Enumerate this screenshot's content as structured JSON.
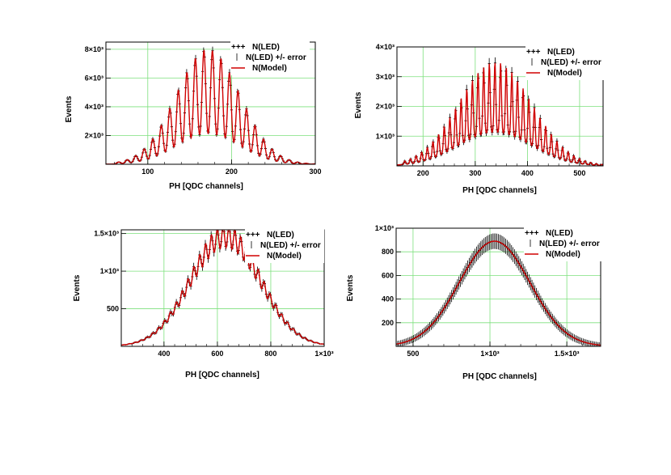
{
  "chart_data": [
    {
      "type": "line",
      "xlabel": "PH [QDC channels]",
      "ylabel": "Events",
      "xlim": [
        50,
        300
      ],
      "ylim": [
        0,
        8500
      ],
      "xticks": [
        {
          "v": 100,
          "t": "100"
        },
        {
          "v": 200,
          "t": "200"
        },
        {
          "v": 300,
          "t": "300"
        }
      ],
      "yticks": [
        {
          "v": 2000,
          "t": "2×10³"
        },
        {
          "v": 4000,
          "t": "4×10³"
        },
        {
          "v": 6000,
          "t": "6×10³"
        },
        {
          "v": 8000,
          "t": "8×10³"
        }
      ],
      "legend": [
        "+++ N(LED)",
        "N(LED) +/- error",
        "N(Model)"
      ],
      "peaks": {
        "start": 65,
        "spacing": 10.2,
        "count": 30,
        "center": 172,
        "width": 38,
        "amp": 8000,
        "sharpness": 2.2,
        "floor": 0.15
      },
      "series": [
        {
          "name": "N(LED)",
          "color": "#000000"
        },
        {
          "name": "N(LED) +/- error",
          "color": "#000000"
        },
        {
          "name": "N(Model)",
          "color": "#d00000"
        }
      ]
    },
    {
      "type": "line",
      "xlabel": "PH [QDC channels]",
      "ylabel": "Events",
      "xlim": [
        150,
        545
      ],
      "ylim": [
        0,
        4000
      ],
      "xticks": [
        {
          "v": 200,
          "t": "200"
        },
        {
          "v": 300,
          "t": "300"
        },
        {
          "v": 400,
          "t": "400"
        },
        {
          "v": 500,
          "t": "500"
        }
      ],
      "yticks": [
        {
          "v": 1000,
          "t": "1×10³"
        },
        {
          "v": 2000,
          "t": "2×10³"
        },
        {
          "v": 3000,
          "t": "3×10³"
        },
        {
          "v": 4000,
          "t": "4×10³"
        }
      ],
      "legend": [
        "+++ N(LED)",
        "N(LED) +/- error",
        "N(Model)"
      ],
      "peaks": {
        "start": 165,
        "spacing": 10.8,
        "count": 36,
        "center": 338,
        "width": 70,
        "amp": 3500,
        "sharpness": 1.6,
        "floor": 0.32
      },
      "series": [
        {
          "name": "N(LED)",
          "color": "#000000"
        },
        {
          "name": "N(LED) +/- error",
          "color": "#000000"
        },
        {
          "name": "N(Model)",
          "color": "#d00000"
        }
      ]
    },
    {
      "type": "line",
      "xlabel": "PH [QDC channels]",
      "ylabel": "Events",
      "xlim": [
        240,
        1000
      ],
      "ylim": [
        0,
        1550
      ],
      "xticks": [
        {
          "v": 400,
          "t": "400"
        },
        {
          "v": 600,
          "t": "600"
        },
        {
          "v": 800,
          "t": "800"
        },
        {
          "v": 1000,
          "t": "1×10³"
        }
      ],
      "yticks": [
        {
          "v": 500,
          "t": "500"
        },
        {
          "v": 1000,
          "t": "1×10³"
        },
        {
          "v": 1500,
          "t": "1.5×10³"
        }
      ],
      "legend": [
        "+++ N(LED)",
        "N(LED) +/- error",
        "N(Model)"
      ],
      "gauss": {
        "center": 630,
        "width": 130,
        "amp": 1460,
        "ripple": 0.1,
        "ripple_period": 22
      },
      "series": [
        {
          "name": "N(LED)",
          "color": "#000000"
        },
        {
          "name": "N(LED) +/- error",
          "color": "#000000"
        },
        {
          "name": "N(Model)",
          "color": "#d00000"
        }
      ]
    },
    {
      "type": "line",
      "xlabel": "PH [QDC channels]",
      "ylabel": "Events",
      "xlim": [
        390,
        1720
      ],
      "ylim": [
        0,
        1000
      ],
      "xticks": [
        {
          "v": 500,
          "t": "500"
        },
        {
          "v": 1000,
          "t": "1×10³"
        },
        {
          "v": 1500,
          "t": "1.5×10³"
        }
      ],
      "yticks": [
        {
          "v": 200,
          "t": "200"
        },
        {
          "v": 400,
          "t": "400"
        },
        {
          "v": 600,
          "t": "600"
        },
        {
          "v": 800,
          "t": "800"
        },
        {
          "v": 1000,
          "t": "1×10³"
        }
      ],
      "legend": [
        "+++ N(LED)",
        "N(LED) +/- error",
        "N(Model)"
      ],
      "gauss": {
        "center": 1030,
        "width": 230,
        "amp": 890,
        "ripple": 0,
        "ripple_period": 30
      },
      "series": [
        {
          "name": "N(LED)",
          "color": "#000000"
        },
        {
          "name": "N(LED) +/- error",
          "color": "#000000"
        },
        {
          "name": "N(Model)",
          "color": "#d00000"
        }
      ]
    }
  ]
}
